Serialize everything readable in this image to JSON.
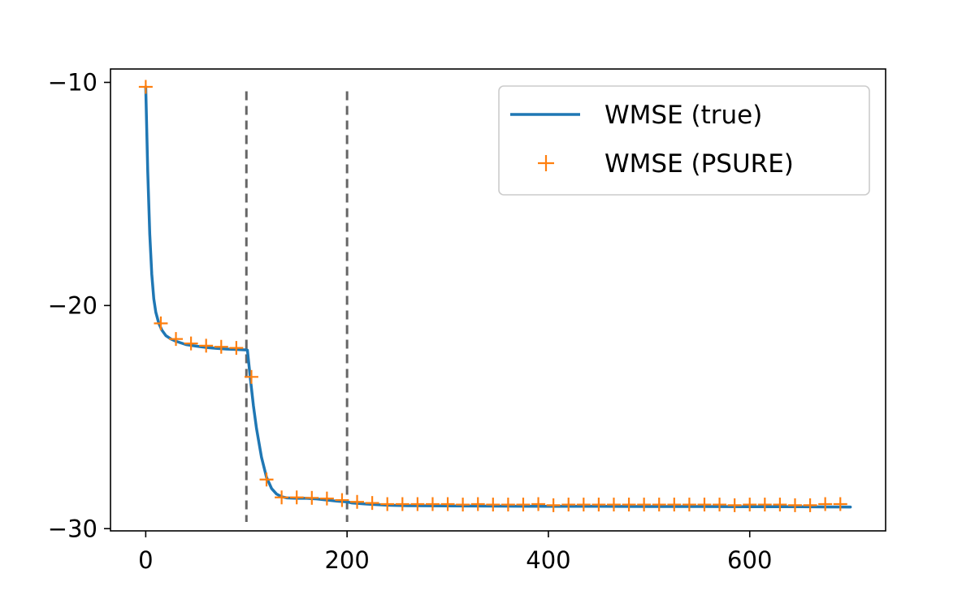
{
  "chart_data": {
    "type": "line",
    "title": "",
    "xlabel": "",
    "ylabel": "",
    "xlim": [
      -35,
      735
    ],
    "ylim": [
      -30.1,
      -9.4
    ],
    "x_ticks": [
      0,
      200,
      400,
      600
    ],
    "x_tick_labels": [
      "0",
      "200",
      "400",
      "600"
    ],
    "y_ticks": [
      -10,
      -20,
      -30
    ],
    "y_tick_labels": [
      "−10",
      "−20",
      "−30"
    ],
    "grid": false,
    "legend_position": "top-right",
    "vlines": [
      {
        "x": 100,
        "ymin": -29.7,
        "ymax": -10.4
      },
      {
        "x": 200,
        "ymin": -29.7,
        "ymax": -10.4
      }
    ],
    "series": [
      {
        "name": "WMSE (true)",
        "style": "line",
        "color": "#1f77b4",
        "x": [
          0,
          2,
          4,
          6,
          8,
          10,
          13,
          16,
          20,
          25,
          30,
          40,
          50,
          60,
          70,
          80,
          90,
          100,
          101,
          104,
          107,
          110,
          115,
          120,
          125,
          130,
          135,
          140,
          150,
          160,
          170,
          180,
          190,
          200,
          205,
          210,
          220,
          240,
          260,
          300,
          350,
          400,
          450,
          500,
          550,
          600,
          650,
          700
        ],
        "y": [
          -10.2,
          -14.0,
          -16.8,
          -18.6,
          -19.7,
          -20.3,
          -20.8,
          -21.1,
          -21.35,
          -21.5,
          -21.6,
          -21.75,
          -21.82,
          -21.88,
          -21.92,
          -21.95,
          -21.97,
          -21.99,
          -22.0,
          -23.3,
          -24.5,
          -25.5,
          -26.8,
          -27.7,
          -28.2,
          -28.45,
          -28.57,
          -28.62,
          -28.64,
          -28.64,
          -28.67,
          -28.72,
          -28.77,
          -28.8,
          -28.85,
          -28.87,
          -28.9,
          -28.95,
          -28.97,
          -28.98,
          -28.99,
          -29.0,
          -29.0,
          -29.01,
          -29.01,
          -29.02,
          -29.02,
          -29.03
        ]
      },
      {
        "name": "WMSE (PSURE)",
        "style": "marker",
        "color": "#ff7f0e",
        "x": [
          0,
          15,
          30,
          45,
          60,
          75,
          90,
          105,
          120,
          135,
          150,
          165,
          180,
          195,
          210,
          225,
          240,
          255,
          270,
          285,
          300,
          315,
          330,
          345,
          360,
          375,
          390,
          405,
          420,
          435,
          450,
          465,
          480,
          495,
          510,
          525,
          540,
          555,
          570,
          585,
          600,
          615,
          630,
          645,
          660,
          675,
          690
        ],
        "y": [
          -10.2,
          -20.8,
          -21.5,
          -21.7,
          -21.8,
          -21.85,
          -21.9,
          -23.2,
          -27.8,
          -28.6,
          -28.6,
          -28.62,
          -28.65,
          -28.72,
          -28.8,
          -28.85,
          -28.9,
          -28.9,
          -28.9,
          -28.9,
          -28.9,
          -28.92,
          -28.9,
          -28.92,
          -28.92,
          -28.92,
          -28.9,
          -28.95,
          -28.92,
          -28.92,
          -28.92,
          -28.92,
          -28.92,
          -28.92,
          -28.92,
          -28.92,
          -28.92,
          -28.92,
          -28.92,
          -28.95,
          -28.92,
          -28.92,
          -28.92,
          -28.95,
          -28.95,
          -28.9,
          -28.9
        ]
      }
    ]
  }
}
